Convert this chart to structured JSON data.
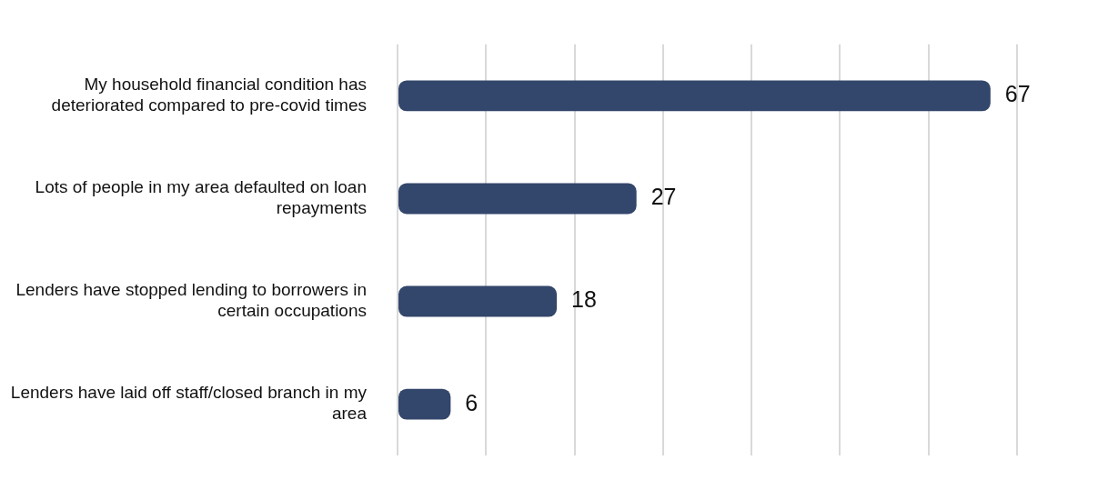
{
  "chart_data": {
    "type": "bar",
    "orientation": "horizontal",
    "categories": [
      "My household financial condition has deteriorated compared to pre-covid times",
      "Lots of people in my area defaulted on loan repayments",
      "Lenders have stopped lending to borrowers in certain occupations",
      "Lenders have laid off staff/closed branch in my area"
    ],
    "values": [
      67,
      27,
      18,
      6
    ],
    "color": "#33466b",
    "xlim": [
      0,
      70
    ],
    "xticks": [
      {
        "value": 0,
        "label": null
      },
      {
        "value": 10,
        "label": null
      },
      {
        "value": 20,
        "label": null
      },
      {
        "value": 30,
        "label": null
      },
      {
        "value": 40,
        "label": null
      },
      {
        "value": 50,
        "label": null
      },
      {
        "value": 60,
        "label": null
      },
      {
        "value": 70,
        "label": null
      }
    ],
    "grid": "x",
    "tick_labels": "y",
    "data_labels": true,
    "legend": false
  }
}
